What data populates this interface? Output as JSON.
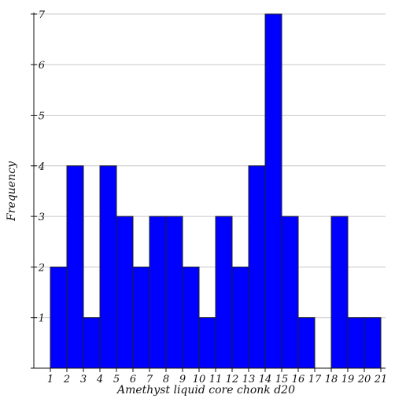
{
  "chart_data": {
    "type": "bar",
    "title": "",
    "xlabel": "Amethyst liquid core chonk d20",
    "ylabel": "Frequency",
    "categories": [
      "1",
      "2",
      "3",
      "4",
      "5",
      "6",
      "7",
      "8",
      "9",
      "10",
      "11",
      "12",
      "13",
      "14",
      "15",
      "16",
      "17",
      "18",
      "19",
      "20",
      "21"
    ],
    "bins": [
      {
        "from": 1,
        "to": 2,
        "count": 2
      },
      {
        "from": 2,
        "to": 3,
        "count": 4
      },
      {
        "from": 3,
        "to": 4,
        "count": 1
      },
      {
        "from": 4,
        "to": 5,
        "count": 4
      },
      {
        "from": 5,
        "to": 6,
        "count": 3
      },
      {
        "from": 6,
        "to": 7,
        "count": 2
      },
      {
        "from": 7,
        "to": 8,
        "count": 3
      },
      {
        "from": 8,
        "to": 9,
        "count": 3
      },
      {
        "from": 9,
        "to": 10,
        "count": 2
      },
      {
        "from": 10,
        "to": 11,
        "count": 1
      },
      {
        "from": 11,
        "to": 12,
        "count": 3
      },
      {
        "from": 12,
        "to": 13,
        "count": 2
      },
      {
        "from": 13,
        "to": 14,
        "count": 4
      },
      {
        "from": 14,
        "to": 15,
        "count": 7
      },
      {
        "from": 15,
        "to": 16,
        "count": 3
      },
      {
        "from": 16,
        "to": 17,
        "count": 1
      },
      {
        "from": 17,
        "to": 18,
        "count": 0
      },
      {
        "from": 18,
        "to": 19,
        "count": 3
      },
      {
        "from": 19,
        "to": 20,
        "count": 1
      },
      {
        "from": 20,
        "to": 21,
        "count": 1
      }
    ],
    "yticks": [
      1,
      2,
      3,
      4,
      5,
      6,
      7
    ],
    "xlim": [
      1,
      21
    ],
    "ylim": [
      0,
      7
    ],
    "grid": "horizontal",
    "legend": "none",
    "colors": {
      "bar": "#0000ff",
      "bar_edge": "#222222",
      "grid": "#c8c8c8",
      "axis": "#111111"
    }
  }
}
